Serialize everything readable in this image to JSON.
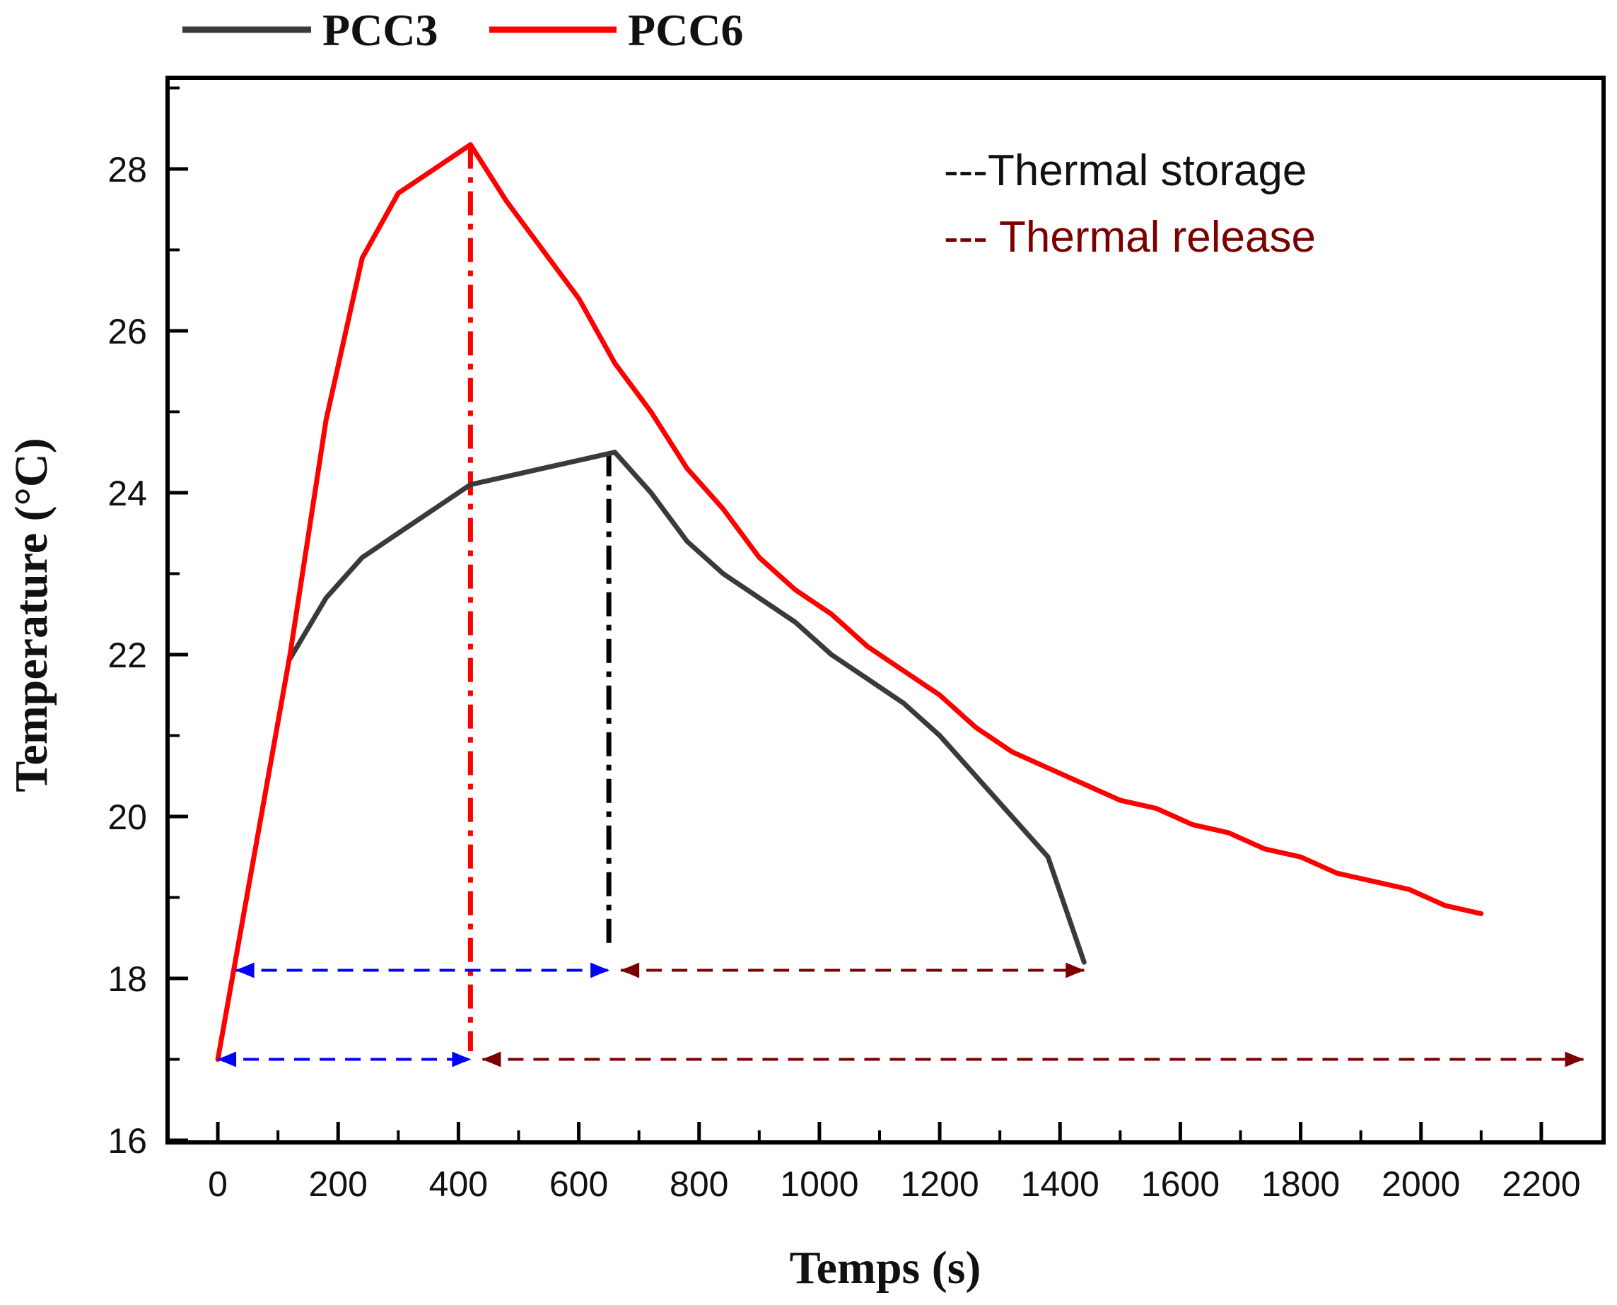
{
  "chart_data": {
    "type": "line",
    "title": "",
    "xlabel": "Temps (s)",
    "ylabel": "Temperature (°C)",
    "xlim": [
      -80,
      2300
    ],
    "ylim": [
      16,
      29.1
    ],
    "xticks": [
      0,
      200,
      400,
      600,
      800,
      1000,
      1200,
      1400,
      1600,
      1800,
      2000,
      2200
    ],
    "yticks": [
      16,
      18,
      20,
      22,
      24,
      26,
      28
    ],
    "xtick_labels": [
      "0",
      "200",
      "400",
      "600",
      "800",
      "1000",
      "1200",
      "1400",
      "1600",
      "1800",
      "2000",
      "2200"
    ],
    "ytick_labels": [
      "16",
      "18",
      "20",
      "22",
      "24",
      "26",
      "28"
    ],
    "legend_position": "top-left outside",
    "series": [
      {
        "name": "PCC3",
        "color": "#3a3a3a",
        "x": [
          120,
          180,
          240,
          300,
          360,
          420,
          480,
          540,
          600,
          660,
          720,
          780,
          840,
          900,
          960,
          1020,
          1080,
          1140,
          1200,
          1260,
          1320,
          1380,
          1440
        ],
        "y": [
          21.95,
          22.7,
          23.2,
          23.5,
          23.8,
          24.1,
          24.2,
          24.3,
          24.4,
          24.5,
          24.0,
          23.4,
          23.0,
          22.7,
          22.4,
          22.0,
          21.7,
          21.4,
          21.0,
          20.5,
          20.0,
          19.5,
          18.2
        ]
      },
      {
        "name": "PCC6",
        "color": "#ff0000",
        "x": [
          0,
          60,
          120,
          180,
          240,
          300,
          360,
          420,
          480,
          540,
          600,
          660,
          720,
          780,
          840,
          900,
          960,
          1020,
          1080,
          1140,
          1200,
          1260,
          1320,
          1380,
          1440,
          1500,
          1560,
          1620,
          1680,
          1740,
          1800,
          1860,
          1920,
          1980,
          2040,
          2100
        ],
        "y": [
          17.0,
          19.5,
          22.0,
          24.9,
          26.9,
          27.7,
          28.0,
          28.3,
          27.6,
          27.0,
          26.4,
          25.6,
          25.0,
          24.3,
          23.8,
          23.2,
          22.8,
          22.5,
          22.1,
          21.8,
          21.5,
          21.1,
          20.8,
          20.6,
          20.4,
          20.2,
          20.1,
          19.9,
          19.8,
          19.6,
          19.5,
          19.3,
          19.2,
          19.1,
          18.9,
          18.8
        ]
      }
    ],
    "markers": [
      {
        "name": "PCC6 peak",
        "x": 420,
        "y_from": 17.1,
        "y_to": 28.3,
        "color": "#ff0000",
        "style": "dash-dot"
      },
      {
        "name": "PCC3 peak",
        "x": 650,
        "y_from": 18.35,
        "y_to": 24.5,
        "color": "#000000",
        "style": "dash-dot"
      }
    ],
    "arrows": [
      {
        "kind": "Thermal storage",
        "x1": 30,
        "x2": 650,
        "y": 18.1,
        "color": "#0000ff"
      },
      {
        "kind": "Thermal release",
        "x1": 670,
        "x2": 1440,
        "y": 18.1,
        "color": "#7b0000"
      },
      {
        "kind": "Thermal storage",
        "x1": 0,
        "x2": 420,
        "y": 17.0,
        "color": "#0000ff"
      },
      {
        "kind": "Thermal release",
        "x1": 440,
        "x2": 2270,
        "y": 17.0,
        "color": "#7b0000"
      }
    ],
    "annotations": [
      {
        "text": "---Thermal storage",
        "color": "#0000ff",
        "text_color": "#111111"
      },
      {
        "text": "--- Thermal release",
        "color": "#7b0000",
        "text_color": "#7b0000"
      }
    ]
  }
}
